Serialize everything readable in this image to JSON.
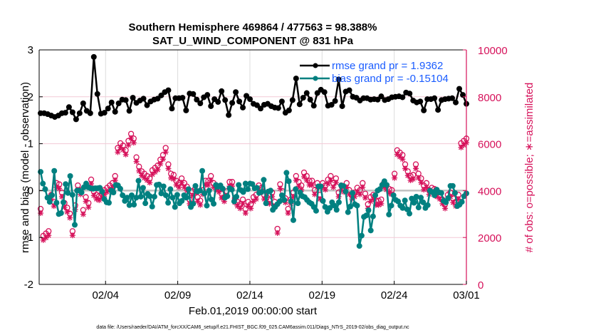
{
  "chart_data": {
    "type": "line",
    "title": [
      "Southern Hemisphere 469864 / 477563 = 98.388%",
      "SAT_U_WIND_COMPONENT @ 831 hPa"
    ],
    "xlabel": "Feb.01,2019 00:00:00 start",
    "ylabel": "rmse and bias (model - observation)",
    "y2label": "# of obs: o=possible; ∗=assimilated",
    "footnote": "data file: /Users/raeder/DAI/ATM_forcXX/CAM6_setup/f.e21.FHIST_BGC.f09_025.CAM6assim.011/Diags_NTrS_2019-02/obs_diag_output.nc",
    "x_tick_labels": [
      "02/04",
      "02/09",
      "02/14",
      "02/19",
      "02/24",
      "03/01"
    ],
    "x_tick_days": [
      3,
      8,
      13,
      18,
      23,
      28
    ],
    "xlim_days": [
      -1.6,
      28
    ],
    "y_ticks": [
      -2,
      -1,
      0,
      1,
      2,
      3
    ],
    "ylim": [
      -2,
      3
    ],
    "y2_ticks": [
      0,
      2000,
      4000,
      6000,
      8000,
      10000
    ],
    "y2lim": [
      0,
      10000
    ],
    "grid": true,
    "legend": {
      "placement": "top-right",
      "entries": [
        "rmse grand pr = 1.9362",
        "bias grand pr = -0.15104"
      ]
    },
    "colors": {
      "rmse": "#000000",
      "bias": "#008080",
      "obs": "#d6115a",
      "legend_text": "#1a5cff",
      "zero_line": "#c0c0c0",
      "grid": "#dcdcdc",
      "right_grid": "#f3c9d6"
    },
    "series": [
      {
        "name": "rmse",
        "x_start_day": -1.5,
        "x_step_day": 0.25,
        "values": [
          1.65,
          1.65,
          1.63,
          1.6,
          1.57,
          1.6,
          1.65,
          1.66,
          1.78,
          1.67,
          1.52,
          1.65,
          1.86,
          1.7,
          1.65,
          2.85,
          2.06,
          1.64,
          1.66,
          1.75,
          1.88,
          1.68,
          1.86,
          1.94,
          1.93,
          1.7,
          1.98,
          1.87,
          1.92,
          1.96,
          1.82,
          1.9,
          1.94,
          1.96,
          2.03,
          2.1,
          2.14,
          1.75,
          1.97,
          1.97,
          1.98,
          1.71,
          2.07,
          2.06,
          1.94,
          1.86,
          1.99,
          2.04,
          1.8,
          1.95,
          1.89,
          2.12,
          1.93,
          1.61,
          1.87,
          2.1,
          1.9,
          1.77,
          2.02,
          1.95,
          1.85,
          1.82,
          1.75,
          1.83,
          1.85,
          1.8,
          1.77,
          1.76,
          1.9,
          1.66,
          1.71,
          1.93,
          2.39,
          1.84,
          1.98,
          2.08,
          1.94,
          1.81,
          2.08,
          2.15,
          2.1,
          1.81,
          1.83,
          1.91,
          2.37,
          1.8,
          2.11,
          2.14,
          2.0,
          1.98,
          1.92,
          1.97,
          1.97,
          1.94,
          1.95,
          1.94,
          2.01,
          1.93,
          1.95,
          1.99,
          2.0,
          2.01,
          1.99,
          2.09,
          2.07,
          1.92,
          1.88,
          1.9,
          1.71,
          1.95,
          1.95,
          1.97,
          1.72,
          1.93,
          1.95,
          1.96,
          1.97,
          1.88,
          2.17,
          2.04,
          1.85
        ]
      },
      {
        "name": "bias",
        "x_start_day": -1.5,
        "x_step_day": 0.25,
        "values": [
          0.4,
          0.15,
          0.03,
          -0.15,
          -0.24,
          -0.1,
          0.42,
          -0.26,
          -0.5,
          -0.48,
          -0.25,
          0.14,
          -0.05,
          0.31,
          -0.09,
          -0.73,
          0.0,
          0.0,
          -0.04,
          0.07,
          0.15,
          0.07,
          0.05,
          0.04,
          0.05,
          0.05,
          0.06,
          -0.02,
          -0.18,
          -0.25,
          -0.26,
          0.0,
          -0.04,
          0.12,
          0.11,
          0.04,
          -0.1,
          -0.22,
          -0.15,
          -0.31,
          -0.1,
          -0.3,
          -0.15,
          0.21,
          -0.13,
          0.06,
          -0.27,
          -0.07,
          -0.12,
          -0.34,
          -0.13,
          0.12,
          0.13,
          -0.06,
          0.09,
          -0.1,
          -0.26,
          0.03,
          -0.15,
          -0.35,
          -0.09,
          -0.27,
          -0.22,
          -0.1,
          -0.15,
          0.03,
          -0.35,
          -0.28,
          0.1,
          -0.02,
          0.0,
          0.42,
          -0.06,
          -0.32,
          -0.0,
          -0.19,
          -0.28,
          0.12,
          0.08,
          0.11,
          0.04,
          -0.15,
          -0.12,
          0.05,
          0.02,
          -0.23,
          -0.13,
          0.12,
          0.01,
          -0.03,
          0.15,
          0.03,
          0.15,
          0.14,
          0.05,
          0.06,
          -0.05,
          -0.03,
          0.23,
          -0.27,
          -0.02,
          0.0,
          -0.41,
          -0.35,
          -0.29,
          -0.23,
          -0.1,
          -0.2,
          0.38,
          0.2,
          -0.23,
          -0.63,
          0.03,
          -0.27,
          -0.04,
          -0.12,
          -0.14,
          -0.2,
          -0.25,
          -0.28,
          -0.35,
          -0.43,
          0.09,
          0.09,
          -0.22,
          -0.35,
          -0.45,
          -0.37,
          -0.25,
          -0.32,
          -0.41,
          -0.25,
          0.11,
          0.1,
          -0.02,
          -0.46,
          -0.34,
          -0.05,
          -0.29,
          -0.32,
          -1.18,
          -0.96,
          -0.56,
          -0.53,
          -0.42,
          -0.85,
          -0.55,
          -0.1,
          0.0,
          0.03,
          0.12,
          0.2,
          0.12,
          -0.51,
          -0.32,
          -0.1,
          -0.2,
          -0.23,
          -0.32,
          -0.37,
          -0.21,
          -0.4,
          -0.49,
          -0.17,
          -0.26,
          -0.13,
          -0.36,
          -0.15,
          -0.25,
          -0.37,
          -0.31,
          0.0,
          -0.03,
          -0.1,
          0.02,
          -0.04,
          -0.05,
          -0.22,
          -0.25,
          -0.16,
          0.1,
          0.1,
          -0.05,
          -0.33,
          -0.3,
          -0.24,
          -0.12,
          -0.06
        ]
      },
      {
        "name": "obs_possible",
        "x_start_day": -1.5,
        "x_step_day": 0.25,
        "values": [
          3100,
          1950,
          2050,
          2150,
          3700,
          3400,
          4200,
          4150,
          3800,
          3350,
          3150,
          2900,
          2150,
          3250,
          4100,
          3900,
          3050,
          3600,
          3350,
          4350,
          3850,
          3700,
          3650,
          3750,
          3900,
          4000,
          4100,
          4200,
          4500,
          5700,
          5900,
          5800,
          5600,
          6000,
          6300,
          6100,
          5300,
          4900,
          4700,
          4600,
          4500,
          4400,
          4750,
          4850,
          4950,
          5200,
          5400,
          5700,
          5000,
          4600,
          4550,
          4300,
          4200,
          4400,
          4200,
          4050,
          3500,
          3850,
          3950,
          3600,
          3450,
          3900,
          4300,
          4300,
          4500,
          4200,
          4100,
          4000,
          3750,
          3600,
          3850,
          4250,
          4250,
          3550,
          3400,
          3300,
          3500,
          3100,
          3400,
          3300,
          3600,
          3700,
          4100,
          4000,
          3700,
          3600,
          3500,
          3800,
          3400,
          2250,
          4150,
          3850,
          3550,
          3100,
          3500,
          3800,
          4500,
          4250,
          4100,
          4650,
          4500,
          4300,
          4300,
          3900,
          4200,
          3700,
          4200,
          4100,
          4350,
          4500,
          4200,
          4400,
          3800,
          4100,
          4000,
          4200,
          3900,
          3700,
          3800,
          4000,
          3900,
          4200,
          3750,
          3300,
          3600,
          3700,
          3450,
          3450,
          3500,
          4200,
          4100,
          3950,
          3900,
          4600,
          5600,
          5500,
          5400,
          5000,
          4700,
          4500,
          4550,
          5000,
          4600,
          4400,
          4100,
          4200,
          3900,
          4000,
          3950,
          3800,
          3700,
          3500,
          3300,
          3700,
          3800,
          3550,
          3400,
          3700,
          5900,
          6000,
          6100
        ]
      }
    ]
  }
}
